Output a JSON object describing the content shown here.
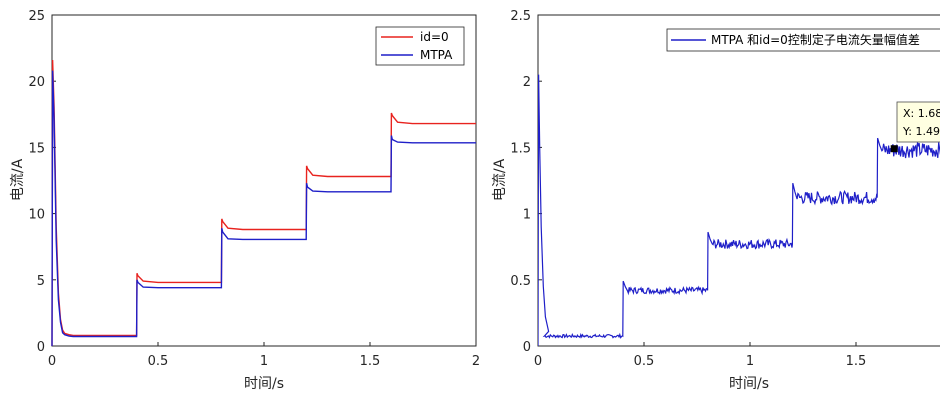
{
  "chart_data": [
    {
      "type": "line",
      "title": "",
      "xlabel": "时间/s",
      "ylabel": "电流/A",
      "xlim": [
        0,
        2
      ],
      "ylim": [
        0,
        25
      ],
      "xticks": [
        "0",
        "0.5",
        "1",
        "1.5",
        "2"
      ],
      "yticks": [
        "0",
        "5",
        "10",
        "15",
        "20",
        "25"
      ],
      "grid": false,
      "legend_position": "top-right",
      "series": [
        {
          "name": "id=0",
          "color": "#e8231f",
          "x": [
            0,
            0.003,
            0.01,
            0.02,
            0.03,
            0.04,
            0.05,
            0.06,
            0.08,
            0.1,
            0.2,
            0.3,
            0.399,
            0.401,
            0.405,
            0.43,
            0.5,
            0.6,
            0.7,
            0.799,
            0.801,
            0.805,
            0.83,
            0.9,
            1.0,
            1.1,
            1.199,
            1.201,
            1.205,
            1.23,
            1.3,
            1.4,
            1.5,
            1.599,
            1.601,
            1.605,
            1.63,
            1.7,
            1.8,
            1.9,
            2.0
          ],
          "y": [
            0,
            21.6,
            18.0,
            9.0,
            4.0,
            2.0,
            1.2,
            0.95,
            0.85,
            0.8,
            0.8,
            0.8,
            0.8,
            5.5,
            5.3,
            4.9,
            4.8,
            4.8,
            4.8,
            4.8,
            9.6,
            9.4,
            8.9,
            8.8,
            8.8,
            8.8,
            8.8,
            13.6,
            13.4,
            12.9,
            12.8,
            12.8,
            12.8,
            12.8,
            17.6,
            17.4,
            16.9,
            16.8,
            16.8,
            16.8,
            16.8
          ]
        },
        {
          "name": "MTPA",
          "color": "#1f1fc8",
          "x": [
            0,
            0.003,
            0.01,
            0.02,
            0.03,
            0.04,
            0.05,
            0.06,
            0.08,
            0.1,
            0.2,
            0.3,
            0.399,
            0.401,
            0.405,
            0.43,
            0.5,
            0.6,
            0.7,
            0.799,
            0.801,
            0.805,
            0.83,
            0.9,
            1.0,
            1.1,
            1.199,
            1.201,
            1.205,
            1.23,
            1.3,
            1.4,
            1.5,
            1.599,
            1.601,
            1.605,
            1.63,
            1.7,
            1.8,
            1.9,
            2.0
          ],
          "y": [
            0,
            20.8,
            17.0,
            8.0,
            3.5,
            1.8,
            1.0,
            0.85,
            0.75,
            0.72,
            0.72,
            0.72,
            0.72,
            5.0,
            4.8,
            4.45,
            4.4,
            4.4,
            4.4,
            4.4,
            8.9,
            8.6,
            8.1,
            8.05,
            8.05,
            8.05,
            8.05,
            12.3,
            12.0,
            11.7,
            11.65,
            11.65,
            11.65,
            11.65,
            15.9,
            15.6,
            15.4,
            15.35,
            15.35,
            15.35,
            15.35
          ]
        }
      ]
    },
    {
      "type": "line",
      "title": "",
      "xlabel": "时间/s",
      "ylabel": "电流/A",
      "xlim": [
        0,
        2
      ],
      "ylim": [
        0,
        2.5
      ],
      "xticks": [
        "0",
        "0.5",
        "1",
        "1.5"
      ],
      "yticks": [
        "0",
        "0.5",
        "1",
        "1.5",
        "2",
        "2.5"
      ],
      "grid": false,
      "legend_position": "top-right",
      "series": [
        {
          "name": "MTPA 和id=0控制定子电流矢量幅值差",
          "color": "#1f1fc8",
          "segments": [
            {
              "x0": 0.01,
              "x1": 0.4,
              "y": 0.075
            },
            {
              "x0": 0.402,
              "x1": 0.8,
              "y": 0.42
            },
            {
              "x0": 0.802,
              "x1": 1.2,
              "y": 0.77
            },
            {
              "x0": 1.202,
              "x1": 1.6,
              "y": 1.12
            },
            {
              "x0": 1.602,
              "x1": 2.0,
              "y": 1.48
            }
          ],
          "peaks": [
            2.05,
            0.49,
            0.86,
            1.23,
            1.57
          ]
        }
      ],
      "datatip": {
        "x_text": "X: 1.68",
        "y_text": "Y: 1.49",
        "x": 1.68,
        "y": 1.49
      }
    }
  ]
}
